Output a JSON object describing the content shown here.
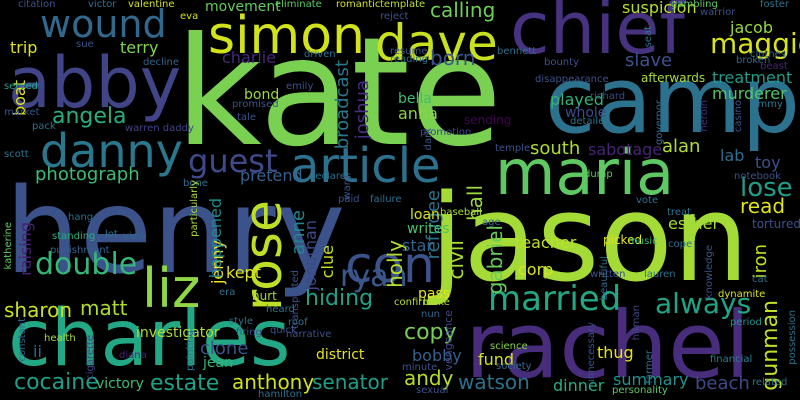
{
  "words": [
    {
      "id": "kate",
      "text": "kate",
      "color": "#7ad151"
    },
    {
      "id": "henry",
      "text": "henry",
      "color": "#3b528b"
    },
    {
      "id": "jason",
      "text": "jason",
      "color": "#a5db36"
    },
    {
      "id": "camp",
      "text": "camp",
      "color": "#2c728e"
    },
    {
      "id": "charles",
      "text": "charles",
      "color": "#22a884"
    },
    {
      "id": "rachel",
      "text": "rachel",
      "color": "#472d7b"
    },
    {
      "id": "chief",
      "text": "chief",
      "color": "#46327e"
    },
    {
      "id": "maria",
      "text": "maria",
      "color": "#5ec962"
    },
    {
      "id": "simon",
      "text": "simon",
      "color": "#d2e21b"
    },
    {
      "id": "abby",
      "text": "abby",
      "color": "#414487"
    },
    {
      "id": "dave",
      "text": "dave",
      "color": "#c8e020"
    },
    {
      "id": "wound",
      "text": "wound",
      "color": "#31688e"
    },
    {
      "id": "danny",
      "text": "danny",
      "color": "#2a788e"
    },
    {
      "id": "article",
      "text": "article",
      "color": "#2c728e"
    },
    {
      "id": "liz",
      "text": "liz",
      "color": "#8fd744"
    },
    {
      "id": "rose",
      "text": "rose",
      "color": "#bddf26"
    },
    {
      "id": "con",
      "text": "con",
      "color": "#3b528b"
    },
    {
      "id": "guest",
      "text": "guest",
      "color": "#3e4a89"
    },
    {
      "id": "married",
      "text": "married",
      "color": "#22a884"
    },
    {
      "id": "double",
      "text": "double",
      "color": "#35b779"
    },
    {
      "id": "maggie",
      "text": "maggie",
      "color": "#d8e219"
    },
    {
      "id": "ryan",
      "text": "ryan",
      "color": "#38598c"
    },
    {
      "id": "always",
      "text": "always",
      "color": "#20a486"
    },
    {
      "id": "lose",
      "text": "lose",
      "color": "#1f9e89"
    },
    {
      "id": "estate",
      "text": "estate",
      "color": "#1fa188"
    },
    {
      "id": "angela",
      "text": "angela",
      "color": "#29af7f"
    },
    {
      "id": "photograph",
      "text": "photograph",
      "color": "#3dbc74"
    },
    {
      "id": "hiding",
      "text": "hiding",
      "color": "#1fa188"
    },
    {
      "id": "cocaine",
      "text": "cocaine",
      "color": "#1f9f88"
    },
    {
      "id": "anthony",
      "text": "anthony",
      "color": "#d0e11c"
    },
    {
      "id": "senator",
      "text": "senator",
      "color": "#1f9e89"
    },
    {
      "id": "sharon",
      "text": "sharon",
      "color": "#cae11f"
    },
    {
      "id": "matt",
      "text": "matt",
      "color": "#addc30"
    },
    {
      "id": "copy",
      "text": "copy",
      "color": "#73d056"
    },
    {
      "id": "andy",
      "text": "andy",
      "color": "#b5de2b"
    },
    {
      "id": "watson",
      "text": "watson",
      "color": "#2d718e"
    },
    {
      "id": "dinner",
      "text": "dinner",
      "color": "#27ad81"
    },
    {
      "id": "summary",
      "text": "summary",
      "color": "#20928c"
    },
    {
      "id": "beach",
      "text": "beach",
      "color": "#3e4989"
    },
    {
      "id": "gunman",
      "text": "gunman",
      "color": "#c0df25"
    },
    {
      "id": "born",
      "text": "born",
      "color": "#39568c"
    },
    {
      "id": "calling",
      "text": "calling",
      "color": "#6ece58"
    },
    {
      "id": "suspicion",
      "text": "suspicion",
      "color": "#b8de29"
    },
    {
      "id": "jacob",
      "text": "jacob",
      "color": "#99d83d"
    },
    {
      "id": "terry",
      "text": "terry",
      "color": "#7fd34e"
    },
    {
      "id": "charlie",
      "text": "charlie",
      "color": "#482878"
    },
    {
      "id": "trip",
      "text": "trip",
      "color": "#dde318"
    },
    {
      "id": "broadcast",
      "text": "broadcast",
      "color": "#2a788e"
    },
    {
      "id": "joshua",
      "text": "joshua",
      "color": "#46307e"
    },
    {
      "id": "slave",
      "text": "slave",
      "color": "#3b528b"
    },
    {
      "id": "treatment",
      "text": "treatment",
      "color": "#1e9b8a"
    },
    {
      "id": "murderer",
      "text": "murderer",
      "color": "#52c569"
    },
    {
      "id": "played",
      "text": "played",
      "color": "#31b57b"
    },
    {
      "id": "south",
      "text": "south",
      "color": "#addc30"
    },
    {
      "id": "sabotage",
      "text": "sabotage",
      "color": "#482475"
    },
    {
      "id": "alan",
      "text": "alan",
      "color": "#b2dd2d"
    },
    {
      "id": "lab",
      "text": "lab",
      "color": "#2e6e8e"
    },
    {
      "id": "toy",
      "text": "toy",
      "color": "#3b528b"
    },
    {
      "id": "read",
      "text": "read",
      "color": "#dfe318"
    },
    {
      "id": "iron",
      "text": "iron",
      "color": "#c2df23"
    },
    {
      "id": "refugee",
      "text": "refugee",
      "color": "#2c738e"
    },
    {
      "id": "hall",
      "text": "hall",
      "color": "#9bd93c"
    },
    {
      "id": "civil",
      "text": "civil",
      "color": "#addc30"
    },
    {
      "id": "holly",
      "text": "holly",
      "color": "#b5de2b"
    },
    {
      "id": "gabriel",
      "text": "gabriel",
      "color": "#69cd5b"
    },
    {
      "id": "esther",
      "text": "esther",
      "color": "#a2da37"
    },
    {
      "id": "teacher",
      "text": "teacher",
      "color": "#bddf26"
    },
    {
      "id": "corp",
      "text": "corp",
      "color": "#dae319"
    },
    {
      "id": "thug",
      "text": "thug",
      "color": "#e7e419"
    },
    {
      "id": "fund",
      "text": "fund",
      "color": "#d2e21b"
    },
    {
      "id": "bobby",
      "text": "bobby",
      "color": "#35608d"
    },
    {
      "id": "star",
      "text": "star",
      "color": "#31668e"
    },
    {
      "id": "clue",
      "text": "clue",
      "color": "#c8e020"
    },
    {
      "id": "jonathan",
      "text": "jonathan",
      "color": "#3e4989"
    },
    {
      "id": "anne",
      "text": "anne",
      "color": "#25848e"
    },
    {
      "id": "jenny",
      "text": "jenny",
      "color": "#f1e51d"
    },
    {
      "id": "kept",
      "text": "kept",
      "color": "#dde318"
    },
    {
      "id": "happened",
      "text": "happened",
      "color": "#238a8d"
    },
    {
      "id": "pretend",
      "text": "pretend",
      "color": "#34618d"
    },
    {
      "id": "clone",
      "text": "clone",
      "color": "#3b528b"
    },
    {
      "id": "jean",
      "text": "jean",
      "color": "#32b67a"
    },
    {
      "id": "bond",
      "text": "bond",
      "color": "#9dd93b"
    },
    {
      "id": "movement",
      "text": "movement",
      "color": "#65cb5e"
    },
    {
      "id": "bella",
      "text": "bella",
      "color": "#3fbc73"
    },
    {
      "id": "anna",
      "text": "anna",
      "color": "#89d548"
    },
    {
      "id": "whole",
      "text": "whole",
      "color": "#3e4a89"
    },
    {
      "id": "loan",
      "text": "loan",
      "color": "#dae319"
    },
    {
      "id": "writes",
      "text": "writes",
      "color": "#4ac16d"
    },
    {
      "id": "investigator",
      "text": "investigator",
      "color": "#addc30"
    },
    {
      "id": "raising",
      "text": "raising",
      "color": "#482173"
    },
    {
      "id": "boat",
      "text": "boat",
      "color": "#dde318"
    },
    {
      "id": "district",
      "text": "district",
      "color": "#e5e419"
    },
    {
      "id": "victory",
      "text": "victory",
      "color": "#3dbc74"
    },
    {
      "id": "ii",
      "text": "ii",
      "color": "#31668e"
    },
    {
      "id": "pass",
      "text": "pass",
      "color": "#e5e419"
    },
    {
      "id": "vengeance",
      "text": "vengeance",
      "color": "#404588"
    },
    {
      "id": "sending",
      "text": "sending",
      "color": "#440154"
    },
    {
      "id": "baseball",
      "text": "baseball",
      "color": "#a8db34"
    },
    {
      "id": "dump",
      "text": "dump",
      "color": "#5ec962"
    },
    {
      "id": "picked",
      "text": "picked",
      "color": "#e2e418"
    },
    {
      "id": "vote",
      "text": "vote",
      "color": "#2d708e"
    },
    {
      "id": "treat",
      "text": "treat",
      "color": "#2c728e"
    },
    {
      "id": "notebook",
      "text": "notebook",
      "color": "#3b528b"
    },
    {
      "id": "tortured",
      "text": "tortured",
      "color": "#3b528b"
    },
    {
      "id": "cope",
      "text": "cope",
      "color": "#2d718e"
    },
    {
      "id": "hitman",
      "text": "hitman",
      "color": "#404588"
    },
    {
      "id": "lauren",
      "text": "lauren",
      "color": "#2d708e"
    },
    {
      "id": "music",
      "text": "music",
      "color": "#35b779"
    },
    {
      "id": "period",
      "text": "period",
      "color": "#1f958b"
    },
    {
      "id": "possession",
      "text": "possession",
      "color": "#2c728e"
    },
    {
      "id": "related",
      "text": "related",
      "color": "#2c728e"
    },
    {
      "id": "financial",
      "text": "financial",
      "color": "#26828e"
    },
    {
      "id": "personality",
      "text": "personality",
      "color": "#5ec962"
    },
    {
      "id": "science",
      "text": "science",
      "color": "#84d44b"
    },
    {
      "id": "society",
      "text": "society",
      "color": "#31688e"
    },
    {
      "id": "hamilton",
      "text": "hamilton",
      "color": "#2d708e"
    },
    {
      "id": "diana",
      "text": "diana",
      "color": "#482475"
    },
    {
      "id": "cigarette",
      "text": "cigarette",
      "color": "#3f4788"
    },
    {
      "id": "health",
      "text": "health",
      "color": "#addc30"
    },
    {
      "id": "constant",
      "text": "constant",
      "color": "#34618d"
    },
    {
      "id": "katherine",
      "text": "katherine",
      "color": "#5ec962"
    },
    {
      "id": "standing",
      "text": "standing",
      "color": "#29af7f"
    },
    {
      "id": "punishment",
      "text": "punishment",
      "color": "#33638d"
    },
    {
      "id": "scott",
      "text": "scott",
      "color": "#2a788e"
    },
    {
      "id": "pack",
      "text": "pack",
      "color": "#2c728e"
    },
    {
      "id": "market",
      "text": "market",
      "color": "#39568c"
    },
    {
      "id": "served",
      "text": "served",
      "color": "#20a386"
    },
    {
      "id": "citation",
      "text": "citation",
      "color": "#3b528b"
    },
    {
      "id": "victor",
      "text": "victor",
      "color": "#2d708e"
    },
    {
      "id": "valentine",
      "text": "valentine",
      "color": "#d5e21a"
    },
    {
      "id": "eva",
      "text": "eva",
      "color": "#d2e21b"
    },
    {
      "id": "eliminate",
      "text": "eliminate",
      "color": "#5ec962"
    },
    {
      "id": "romantic",
      "text": "romantic",
      "color": "#d2e21b"
    },
    {
      "id": "template",
      "text": "template",
      "color": "#b5de2b"
    },
    {
      "id": "reject",
      "text": "reject",
      "color": "#3b528b"
    },
    {
      "id": "gambling",
      "text": "gambling",
      "color": "#5ec962"
    },
    {
      "id": "warrior",
      "text": "warrior",
      "color": "#3b528b"
    },
    {
      "id": "foster",
      "text": "foster",
      "color": "#2c728e"
    },
    {
      "id": "broken",
      "text": "broken",
      "color": "#31688e"
    },
    {
      "id": "clothes",
      "text": "clothes",
      "color": "#31688e"
    },
    {
      "id": "seat",
      "text": "seat",
      "color": "#2c728e"
    },
    {
      "id": "bounty",
      "text": "bounty",
      "color": "#3b528b"
    },
    {
      "id": "bennett",
      "text": "bennett",
      "color": "#2d708e"
    },
    {
      "id": "resume",
      "text": "resume",
      "color": "#3b528b"
    },
    {
      "id": "reading",
      "text": "reading",
      "color": "#2d708e"
    },
    {
      "id": "driven",
      "text": "driven",
      "color": "#2c728e"
    },
    {
      "id": "decline",
      "text": "decline",
      "color": "#33638d"
    },
    {
      "id": "sue",
      "text": "sue",
      "color": "#39568c"
    },
    {
      "id": "emily",
      "text": "emily",
      "color": "#3b528b"
    },
    {
      "id": "promised",
      "text": "promised",
      "color": "#3b528b"
    },
    {
      "id": "disappearance",
      "text": "disappearance",
      "color": "#3b528b"
    },
    {
      "id": "afterwards",
      "text": "afterwards",
      "color": "#addc30"
    },
    {
      "id": "richard",
      "text": "richard",
      "color": "#3e4989"
    },
    {
      "id": "promotion",
      "text": "promotion",
      "color": "#3f4788"
    },
    {
      "id": "detailed",
      "text": "detailed",
      "color": "#2d708e"
    },
    {
      "id": "governor",
      "text": "governor",
      "color": "#31688e"
    },
    {
      "id": "heroin",
      "text": "heroin",
      "color": "#46307e"
    },
    {
      "id": "casino",
      "text": "casino",
      "color": "#3b528b"
    },
    {
      "id": "beast",
      "text": "beast",
      "color": "#482475"
    },
    {
      "id": "jimmy",
      "text": "jimmy",
      "color": "#2a788e"
    },
    {
      "id": "warren-daddy",
      "text": "warren daddy",
      "color": "#404588"
    },
    {
      "id": "tale",
      "text": "tale",
      "color": "#3b528b"
    },
    {
      "id": "bone",
      "text": "bone",
      "color": "#2d708e"
    },
    {
      "id": "particularly",
      "text": "particularly",
      "color": "#addc30"
    },
    {
      "id": "hang",
      "text": "hang",
      "color": "#2d708e"
    },
    {
      "id": "lot",
      "text": "lot",
      "color": "#2c728e"
    },
    {
      "id": "view",
      "text": "view",
      "color": "#31688e"
    },
    {
      "id": "era",
      "text": "era",
      "color": "#2c728e"
    },
    {
      "id": "hurt",
      "text": "hurt",
      "color": "#a2da37"
    },
    {
      "id": "style",
      "text": "style",
      "color": "#2d708e"
    },
    {
      "id": "firing",
      "text": "firing",
      "color": "#3b528b"
    },
    {
      "id": "painting",
      "text": "painting",
      "color": "#2c728e"
    },
    {
      "id": "quick",
      "text": "quick",
      "color": "#3b528b"
    },
    {
      "id": "roof",
      "text": "roof",
      "color": "#2d708e"
    },
    {
      "id": "heard",
      "text": "heard",
      "color": "#2c728e"
    },
    {
      "id": "narrative",
      "text": "narrative",
      "color": "#3b528b"
    },
    {
      "id": "declares",
      "text": "declares",
      "color": "#2d708e"
    },
    {
      "id": "ward",
      "text": "ward",
      "color": "#39568c"
    },
    {
      "id": "paid",
      "text": "paid",
      "color": "#3b528b"
    },
    {
      "id": "failure",
      "text": "failure",
      "color": "#2d708e"
    },
    {
      "id": "transported",
      "text": "transported",
      "color": "#3b528b"
    },
    {
      "id": "confirms",
      "text": "confirms",
      "color": "#b5de2b"
    },
    {
      "id": "nun",
      "text": "nun",
      "color": "#31688e"
    },
    {
      "id": "blake",
      "text": "blake",
      "color": "#addc30"
    },
    {
      "id": "minute",
      "text": "minute",
      "color": "#3b528b"
    },
    {
      "id": "sexual",
      "text": "sexual",
      "color": "#3b528b"
    },
    {
      "id": "unnecessary",
      "text": "unnecessary",
      "color": "#3b528b"
    },
    {
      "id": "farmer",
      "text": "farmer",
      "color": "#2c728e"
    },
    {
      "id": "written",
      "text": "written",
      "color": "#3b528b"
    },
    {
      "id": "beautiful",
      "text": "beautiful",
      "color": "#2d708e"
    },
    {
      "id": "knowledge",
      "text": "knowledge",
      "color": "#3b528b"
    },
    {
      "id": "dynamite",
      "text": "dynamite",
      "color": "#d8e219"
    },
    {
      "id": "temple",
      "text": "temple",
      "color": "#3b528b"
    },
    {
      "id": "dark",
      "text": "dark",
      "color": "#3b528b"
    },
    {
      "id": "age",
      "text": "age",
      "color": "#31688e"
    },
    {
      "id": "cat",
      "text": "cat",
      "color": "#2c728e"
    }
  ]
}
